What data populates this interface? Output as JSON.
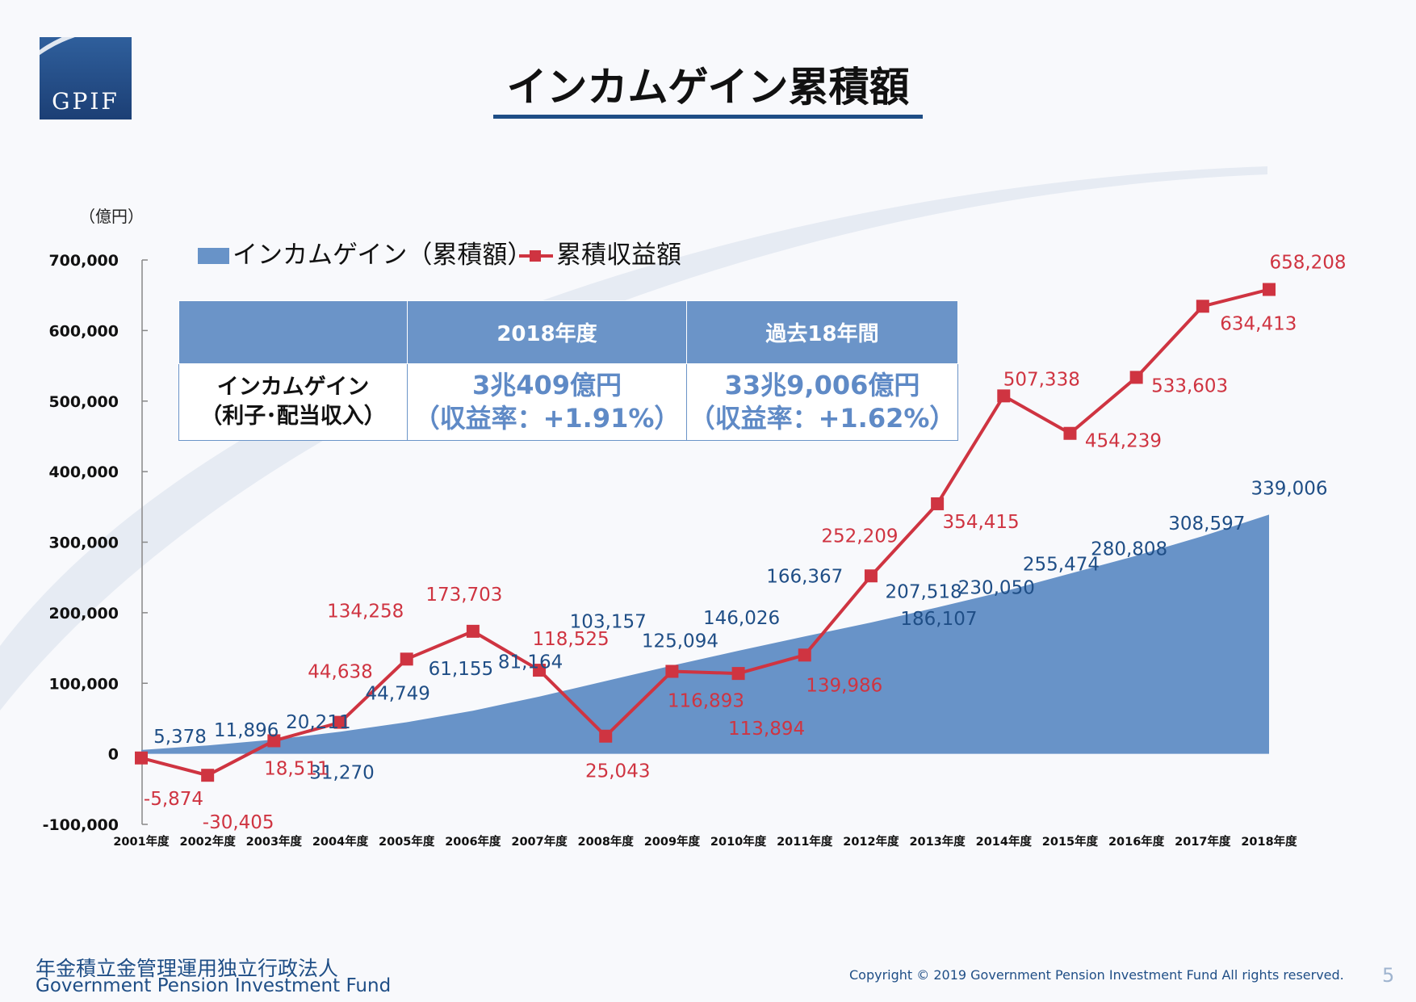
{
  "title": "インカムゲイン累積額",
  "logo_text": "GPIF",
  "unit_label": "（億円）",
  "table": {
    "col_headers": [
      "",
      "2018年度",
      "過去18年間"
    ],
    "row_header": [
      "インカムゲイン",
      "（利子･配当収入）"
    ],
    "cells": [
      [
        "3兆409億円",
        "（収益率：+1.91%）"
      ],
      [
        "33兆9,006億円",
        "（収益率：+1.62%）"
      ]
    ]
  },
  "footer": {
    "org_jp": "年金積立金管理運用独立行政法人",
    "org_en": "Government Pension Investment Fund",
    "copyright": "Copyright © 2019 Government Pension Investment Fund All rights reserved.",
    "page": "5"
  },
  "colors": {
    "area": "#6893c8",
    "line": "#cf3441",
    "title_rule": "#1f4e86",
    "area_label": "#1f4e86"
  },
  "chart_data": {
    "type": "area",
    "categories": [
      "2001年度",
      "2002年度",
      "2003年度",
      "2004年度",
      "2005年度",
      "2006年度",
      "2007年度",
      "2008年度",
      "2009年度",
      "2010年度",
      "2011年度",
      "2012年度",
      "2013年度",
      "2014年度",
      "2015年度",
      "2016年度",
      "2017年度",
      "2018年度"
    ],
    "ylim": [
      -100000,
      700000
    ],
    "yticks": [
      -100000,
      0,
      100000,
      200000,
      300000,
      400000,
      500000,
      600000,
      700000
    ],
    "ytick_labels": [
      "-100,000",
      "0",
      "100,000",
      "200,000",
      "300,000",
      "400,000",
      "500,000",
      "600,000",
      "700,000"
    ],
    "legend_position": "top-left",
    "grid": false,
    "series": [
      {
        "name": "インカムゲイン（累積額）",
        "type": "area",
        "values": [
          5378,
          11896,
          20211,
          31270,
          44749,
          61155,
          81164,
          103157,
          125094,
          146026,
          166367,
          186107,
          207518,
          230050,
          255474,
          280808,
          308597,
          339006
        ],
        "labels": [
          "5,378",
          "11,896",
          "20,211",
          "31,270",
          "44,749",
          "61,155",
          "81,164",
          "103,157",
          "125,094",
          "146,026",
          "166,367",
          "186,107",
          "207,518",
          "230,050",
          "255,474",
          "280,808",
          "308,597",
          "339,006"
        ]
      },
      {
        "name": "累積収益額",
        "type": "line",
        "values": [
          -5874,
          -30405,
          18511,
          44638,
          134258,
          173703,
          118525,
          25043,
          116893,
          113894,
          139986,
          252209,
          354415,
          507338,
          454239,
          533603,
          634413,
          658208
        ],
        "labels": [
          "-5,874",
          "-30,405",
          "18,511",
          "44,638",
          "134,258",
          "173,703",
          "118,525",
          "25,043",
          "116,893",
          "113,894",
          "139,986",
          "252,209",
          "354,415",
          "507,338",
          "454,239",
          "533,603",
          "634,413",
          "658,208"
        ]
      }
    ]
  }
}
